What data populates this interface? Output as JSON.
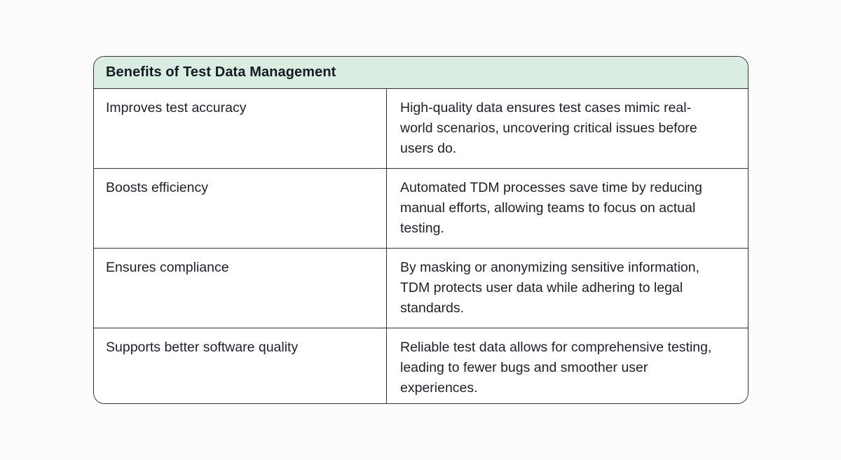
{
  "table": {
    "title": "Benefits of Test Data Management",
    "columns": [
      "benefit",
      "description"
    ],
    "rows": [
      {
        "benefit": "Improves test accuracy",
        "description": "High-quality data ensures test cases mimic real-world scenarios, uncovering critical issues before users do."
      },
      {
        "benefit": "Boosts efficiency",
        "description": "Automated TDM processes save time by reducing manual efforts, allowing teams to focus on actual testing."
      },
      {
        "benefit": "Ensures compliance",
        "description": "By masking or anonymizing sensitive information, TDM protects user data while adhering to legal standards."
      },
      {
        "benefit": "Supports better software quality",
        "description": "Reliable test data allows for comprehensive testing, leading to fewer bugs and smoother user experiences."
      }
    ],
    "colors": {
      "page_background": "#fcfbfa",
      "header_background": "#d9ede3",
      "cell_background": "#ffffff",
      "border": "#2f3338",
      "text": "#1d2127"
    }
  }
}
